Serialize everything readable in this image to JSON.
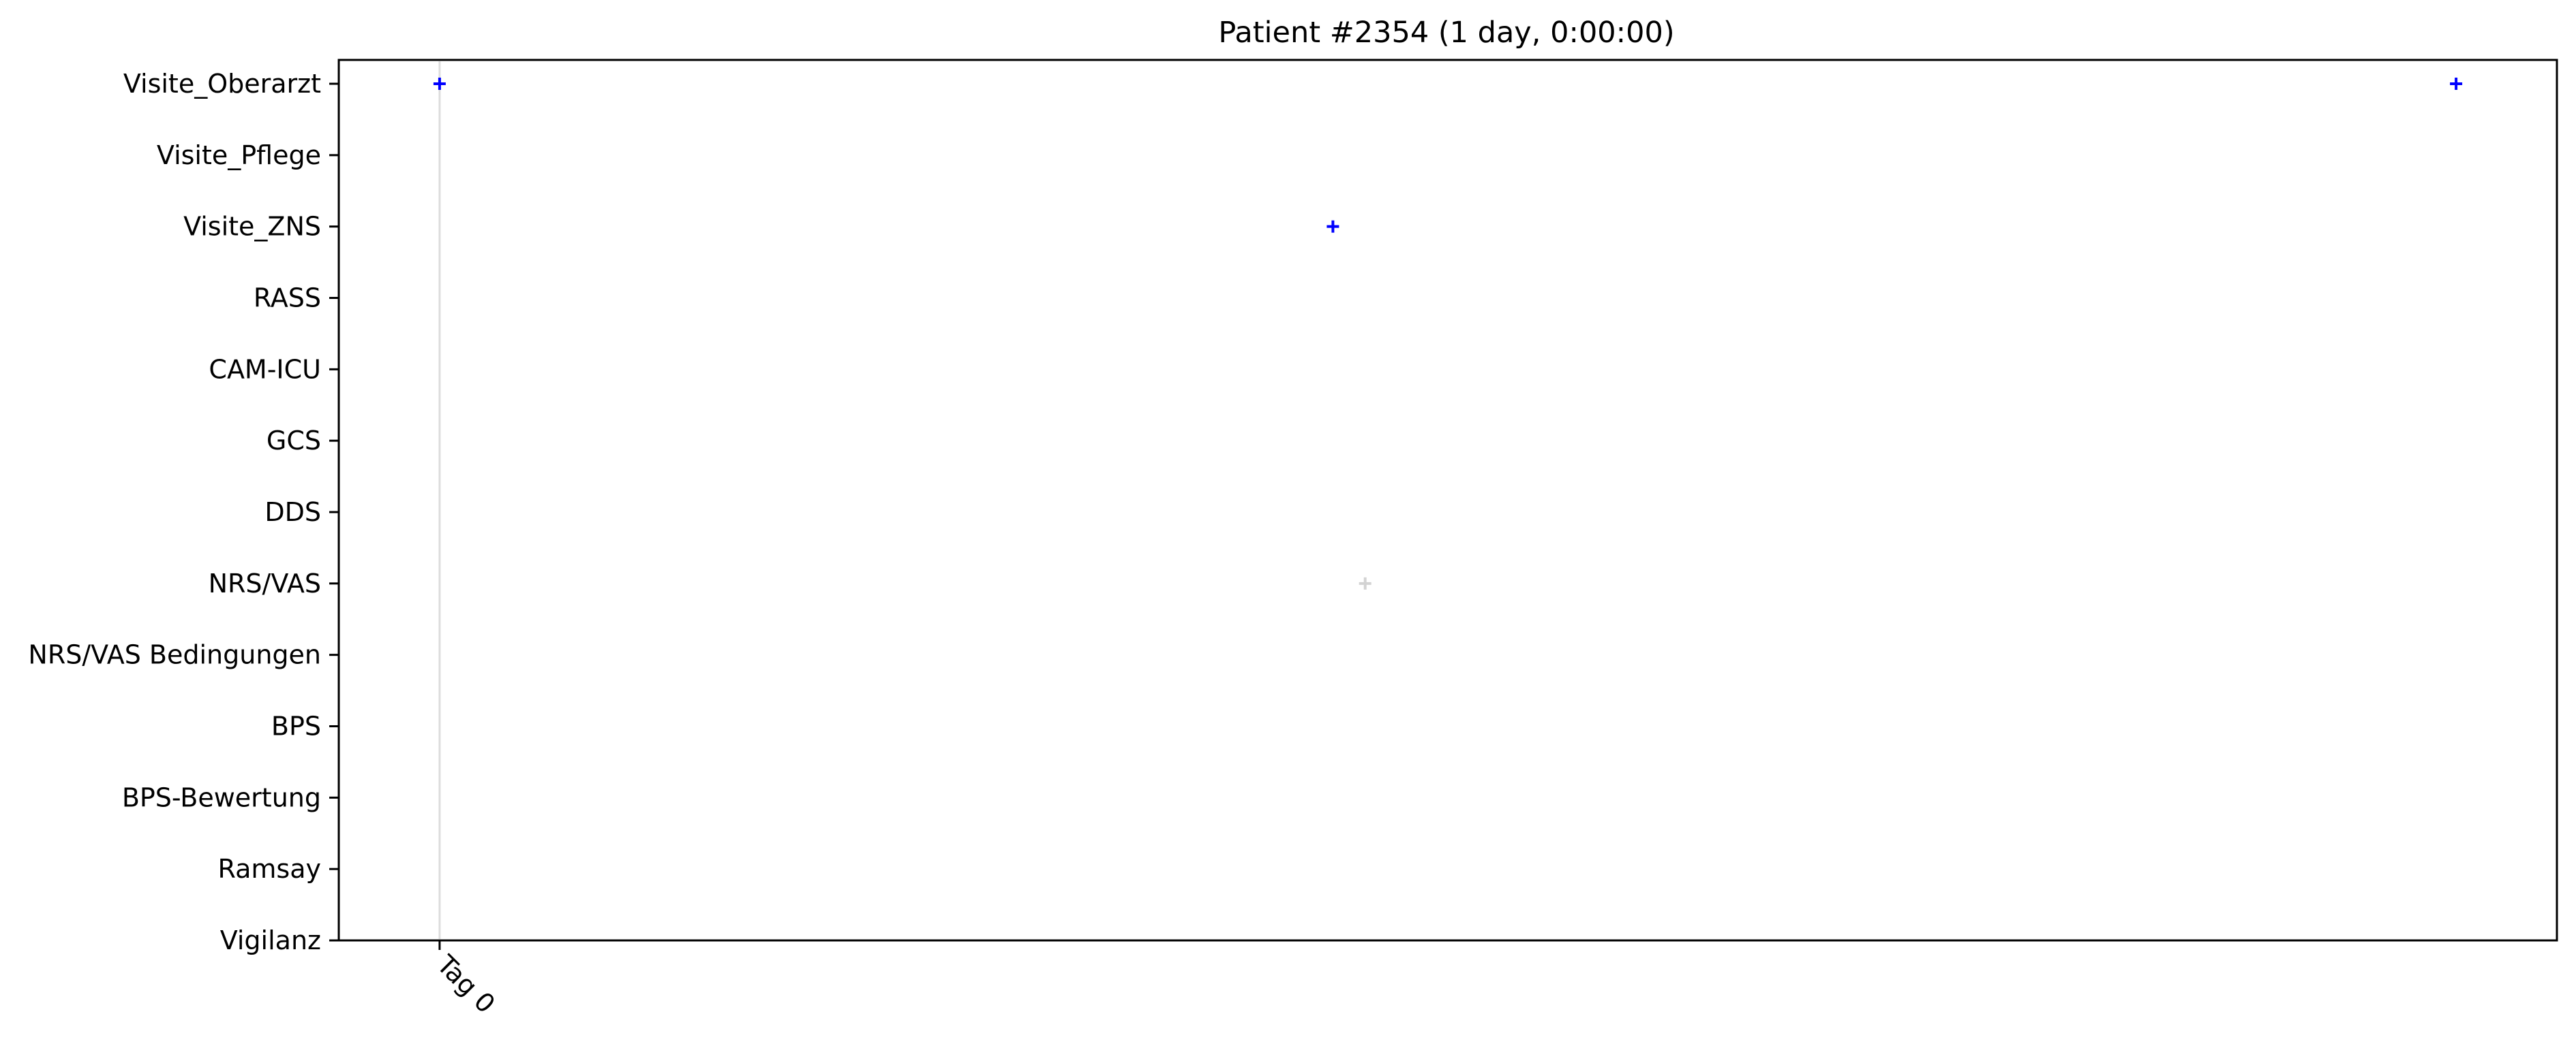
{
  "chart_data": {
    "type": "scatter",
    "title": "Patient #2354 (1 day, 0:00:00)",
    "xlabel": "",
    "ylabel": "",
    "categories": [
      "Visite_Oberarzt",
      "Visite_Pflege",
      "Visite_ZNS",
      "RASS",
      "CAM-ICU",
      "GCS",
      "DDS",
      "NRS/VAS",
      "NRS/VAS Bedingungen",
      "BPS",
      "BPS-Bewertung",
      "Ramsay",
      "Vigilanz"
    ],
    "x_ticks": [
      {
        "label": "Tag 0",
        "value": 0
      }
    ],
    "xlim": [
      -0.05,
      1.05
    ],
    "grid": false,
    "vertical_marker_lines": [
      0
    ],
    "points": [
      {
        "category": "Visite_Oberarzt",
        "x": 0.0,
        "color": "#0000ff"
      },
      {
        "category": "Visite_Oberarzt",
        "x": 1.0,
        "color": "#0000ff"
      },
      {
        "category": "Visite_ZNS",
        "x": 0.443,
        "color": "#0000ff"
      },
      {
        "category": "NRS/VAS",
        "x": 0.459,
        "color": "#d3d3d3"
      }
    ],
    "marker": "plus"
  }
}
